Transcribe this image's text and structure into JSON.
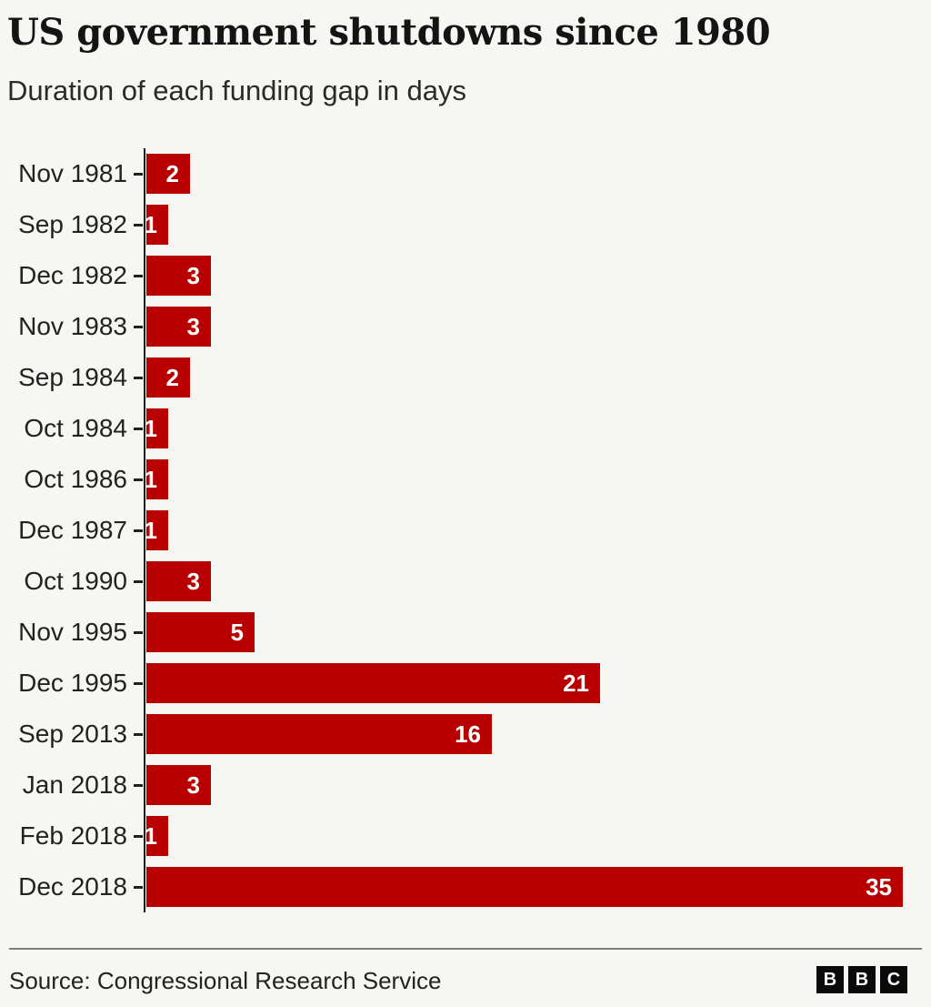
{
  "header": {
    "title": "US government shutdowns since 1980",
    "subtitle": "Duration of each funding gap in days"
  },
  "chart_data": {
    "type": "bar",
    "orientation": "horizontal",
    "title": "US government shutdowns since 1980",
    "subtitle": "Duration of each funding gap in days",
    "categories": [
      "Nov 1981",
      "Sep 1982",
      "Dec 1982",
      "Nov 1983",
      "Sep 1984",
      "Oct 1984",
      "Oct 1986",
      "Dec 1987",
      "Oct 1990",
      "Nov 1995",
      "Dec 1995",
      "Sep 2013",
      "Jan 2018",
      "Feb 2018",
      "Dec 2018"
    ],
    "values": [
      2,
      1,
      3,
      3,
      2,
      1,
      1,
      1,
      3,
      5,
      21,
      16,
      3,
      1,
      35
    ],
    "xlabel": "",
    "ylabel": "",
    "xlim": [
      0,
      35
    ],
    "grid": false,
    "legend": false,
    "value_labels": "inside-bar-right"
  },
  "colors": {
    "bar": "#b80000",
    "background": "#f6f6f3",
    "text": "#222222",
    "axis": "#1a1a1a",
    "divider": "#7d7d7d",
    "value_label": "#ffffff",
    "logo_background": "#0a0a0a"
  },
  "footer": {
    "source": "Source: Congressional Research Service",
    "logo_letters": [
      "B",
      "B",
      "C"
    ]
  }
}
